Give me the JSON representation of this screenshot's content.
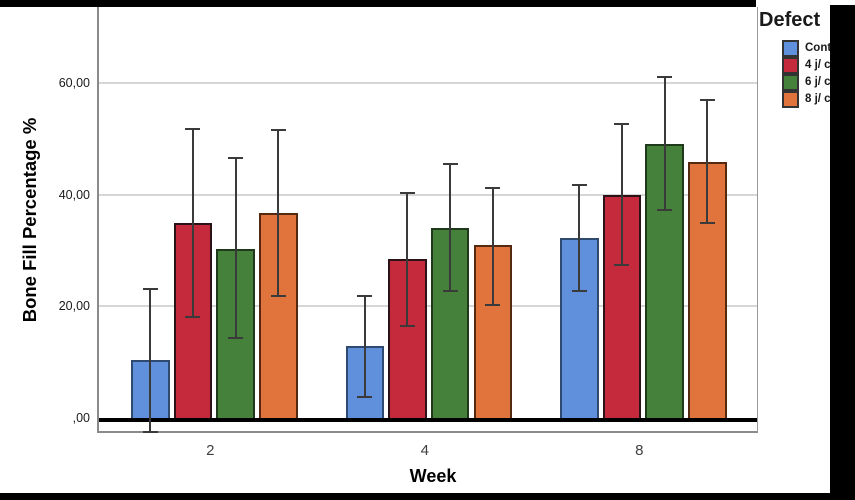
{
  "chart_data": {
    "type": "bar",
    "title": "",
    "xlabel": "Week",
    "ylabel": "Bone Fill Percentage %",
    "categories": [
      "2",
      "4",
      "8"
    ],
    "series": [
      {
        "name": "Cont",
        "color": "#6090DC",
        "border": "#2E4A6E",
        "values": [
          10.3,
          12.9,
          32.2
        ],
        "error_upper": [
          23.3,
          22.0,
          41.9
        ],
        "error_lower": [
          -2.6,
          3.6,
          22.5
        ]
      },
      {
        "name": "4 j/ c",
        "color": "#C4293C",
        "border": "#2B1216",
        "values": [
          34.9,
          28.4,
          40.0
        ],
        "error_upper": [
          52.0,
          40.4,
          52.9
        ],
        "error_lower": [
          17.9,
          16.3,
          27.3
        ]
      },
      {
        "name": "6 j/ c",
        "color": "#45813A",
        "border": "#1E3A1A",
        "values": [
          30.3,
          34.1,
          49.1
        ],
        "error_upper": [
          46.8,
          45.6,
          61.2
        ],
        "error_lower": [
          14.2,
          22.5,
          37.0
        ]
      },
      {
        "name": "8 j/ c",
        "color": "#E0743C",
        "border": "#54290F",
        "values": [
          36.7,
          30.9,
          45.8
        ],
        "error_upper": [
          51.8,
          41.3,
          57.1
        ],
        "error_lower": [
          21.7,
          20.1,
          34.8
        ]
      }
    ],
    "y_ticks": [
      {
        "label": ",00",
        "value": 0
      },
      {
        "label": "20,00",
        "value": 20
      },
      {
        "label": "40,00",
        "value": 40
      },
      {
        "label": "60,00",
        "value": 60
      }
    ],
    "ylim": [
      -2.7,
      73.6
    ],
    "grid": "horizontal-only",
    "legend": {
      "title": "Defect",
      "position": "top-right"
    },
    "colors": {
      "background": "#ffffff",
      "surround_bars": "#000000",
      "gridline": "#d6d6d6",
      "zero_line": "#000000",
      "frame": "#8a8a8a",
      "error_bar": "#3a3a3a"
    }
  }
}
